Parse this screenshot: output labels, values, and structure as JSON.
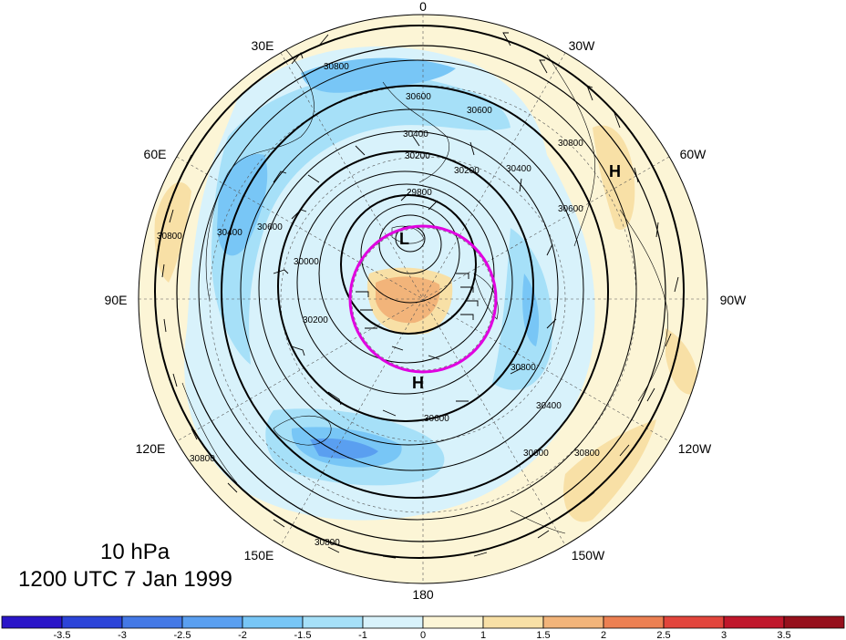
{
  "title": {
    "level": "10 hPa",
    "time": "1200 UTC 7 Jan 1999"
  },
  "longitude_labels": [
    {
      "text": "0"
    },
    {
      "text": "30W"
    },
    {
      "text": "60W"
    },
    {
      "text": "90W"
    },
    {
      "text": "120W"
    },
    {
      "text": "150W"
    },
    {
      "text": "180"
    },
    {
      "text": "150E"
    },
    {
      "text": "120E"
    },
    {
      "text": "90E"
    },
    {
      "text": "60E"
    },
    {
      "text": "30E"
    }
  ],
  "pressure_centers": [
    {
      "text": "H",
      "note": "high over North Atlantic"
    },
    {
      "text": "L",
      "note": "low near pole"
    },
    {
      "text": "H",
      "note": "high over Arctic Ocean"
    }
  ],
  "contour_labels": [
    "30800",
    "30600",
    "30600",
    "30400",
    "30200",
    "29800",
    "30200",
    "30400",
    "30800",
    "30600",
    "30000",
    "30200",
    "30800",
    "30400",
    "30600",
    "30800",
    "30600",
    "30800",
    "30400",
    "30600",
    "30800",
    "30800"
  ],
  "highlight_circle_color": "#e000e0",
  "colorbar": {
    "labels": [
      "-3.5",
      "-3",
      "-2.5",
      "-2",
      "-1.5",
      "-1",
      "0",
      "1",
      "1.5",
      "2",
      "2.5",
      "3",
      "3.5"
    ],
    "colors": [
      "#2a16c8",
      "#2c44d8",
      "#4479e6",
      "#5a9ff0",
      "#78c6f6",
      "#a6e0f8",
      "#d8f2fb",
      "#fcf5d6",
      "#f8e0a6",
      "#f2b47a",
      "#ec8052",
      "#e2453c",
      "#c0182c",
      "#96101c"
    ]
  }
}
